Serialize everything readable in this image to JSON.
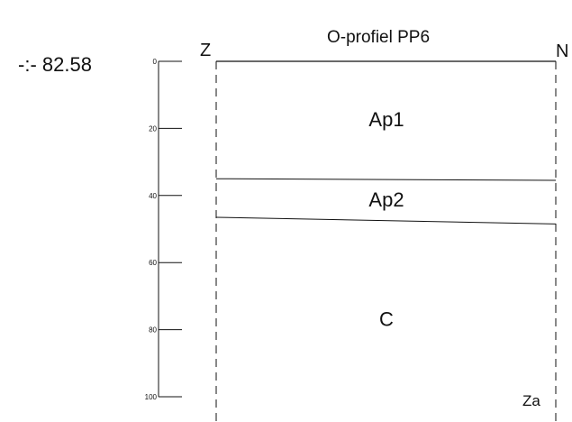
{
  "title": "O-profiel PP6",
  "orientation": {
    "left": "Z",
    "right": "N"
  },
  "elevation_label": "-:- 82.58",
  "depth_scale": {
    "unit": "cm",
    "ticks": [
      "0",
      "20",
      "40",
      "60",
      "80",
      "100"
    ],
    "tick_values": [
      0,
      20,
      40,
      60,
      80,
      100
    ]
  },
  "horizons": [
    {
      "name": "Ap1",
      "top_cm": [
        0,
        0
      ],
      "bottom_cm": [
        35,
        35.5
      ]
    },
    {
      "name": "Ap2",
      "top_cm": [
        35,
        35.5
      ],
      "bottom_cm": [
        46.5,
        48.5
      ]
    },
    {
      "name": "C",
      "top_cm": [
        46.5,
        48.5
      ],
      "bottom_cm": null
    }
  ],
  "texture_label": "Za",
  "colors": {
    "line": "#111111",
    "background": "#ffffff"
  }
}
